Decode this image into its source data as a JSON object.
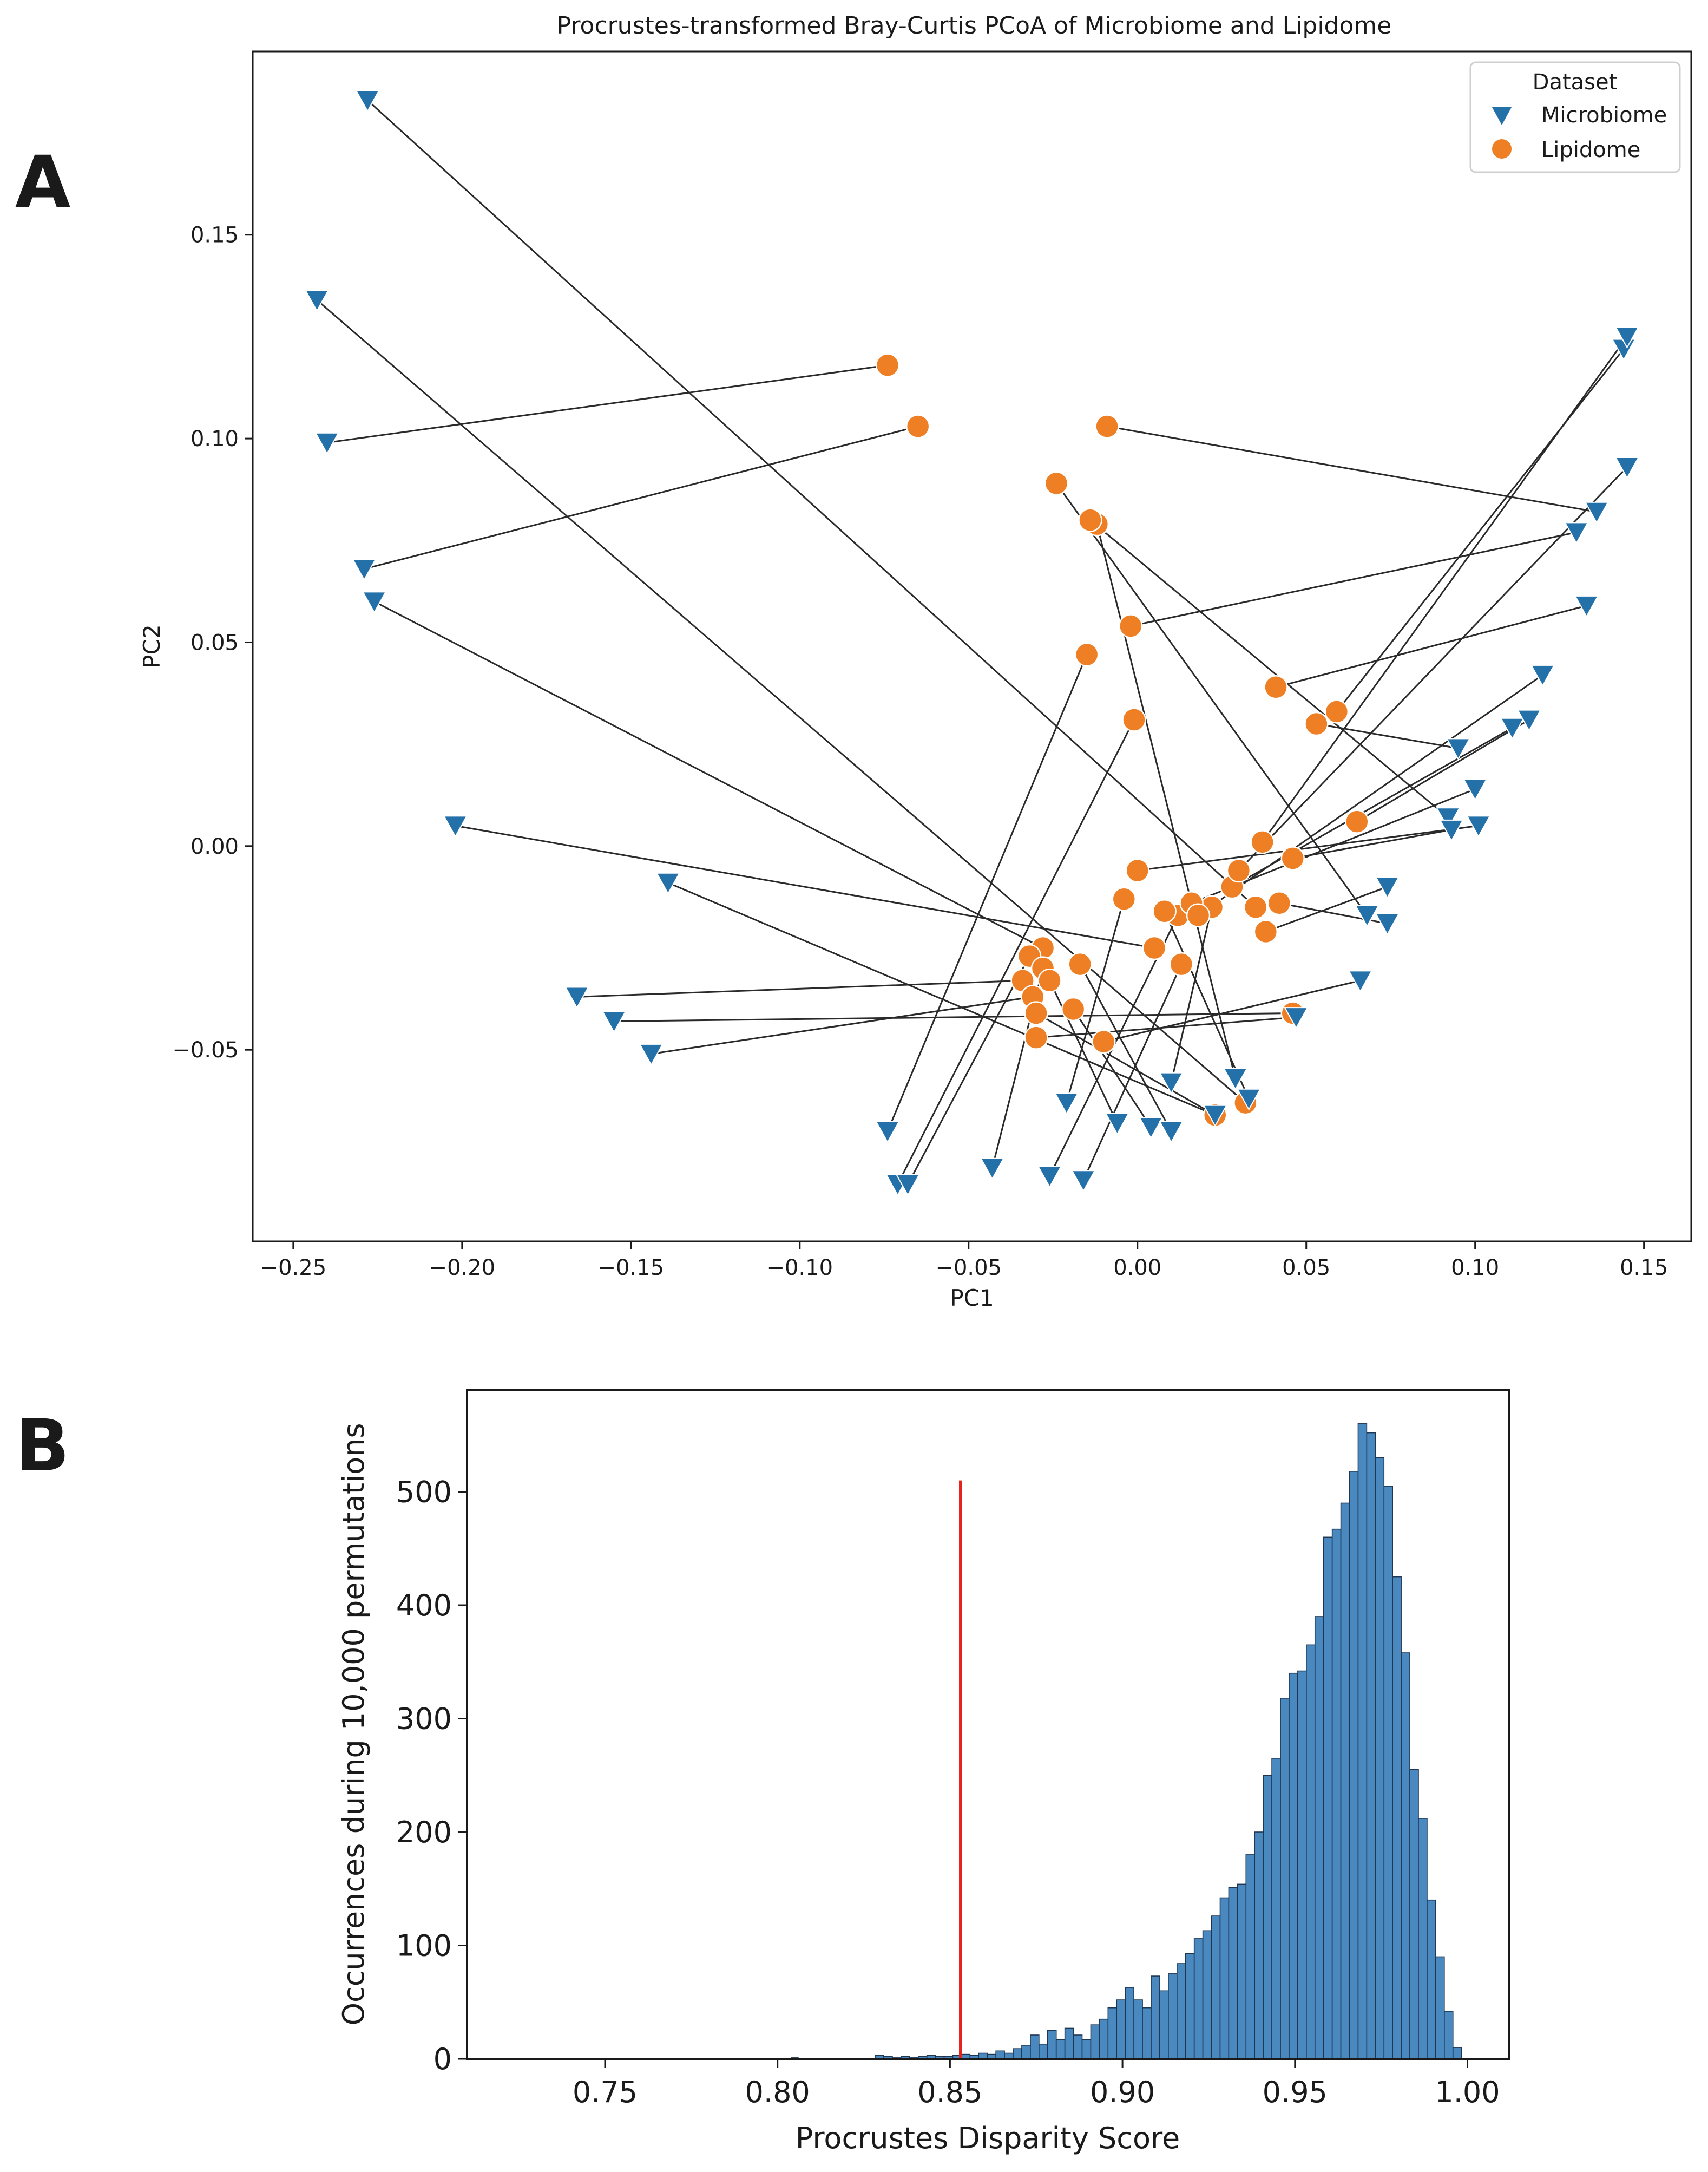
{
  "panels": {
    "a_label": "A",
    "b_label": "B"
  },
  "colors": {
    "microbiome": "#2471aa",
    "lipidome": "#ef7f24",
    "histogram": "#4a89c0",
    "threshold": "#e8221c",
    "axis": "#1a1a1a",
    "line": "#2a2a2a"
  },
  "chart_data": [
    {
      "type": "scatter",
      "title": "Procrustes-transformed Bray-Curtis PCoA of Microbiome and Lipidome",
      "xlabel": "PC1",
      "ylabel": "PC2",
      "xlim": [
        -0.262,
        0.164
      ],
      "ylim": [
        -0.097,
        0.195
      ],
      "xticks": [
        -0.25,
        -0.2,
        -0.15,
        -0.1,
        -0.05,
        0.0,
        0.05,
        0.1,
        0.15
      ],
      "xtick_labels": [
        "−0.25",
        "−0.20",
        "−0.15",
        "−0.10",
        "−0.05",
        "0.00",
        "0.05",
        "0.10",
        "0.15"
      ],
      "yticks": [
        -0.05,
        0.0,
        0.05,
        0.1,
        0.15
      ],
      "ytick_labels": [
        "−0.05",
        "0.00",
        "0.05",
        "0.10",
        "0.15"
      ],
      "legend": {
        "title": "Dataset",
        "position": "top-right",
        "entries": [
          "Microbiome",
          "Lipidome"
        ]
      },
      "series": [
        {
          "name": "Microbiome",
          "marker": "triangle-down"
        },
        {
          "name": "Lipidome",
          "marker": "circle"
        }
      ],
      "pairs": [
        {
          "microbiome": [
            -0.228,
            0.183
          ],
          "lipidome": [
            0.035,
            -0.015
          ]
        },
        {
          "microbiome": [
            -0.243,
            0.134
          ],
          "lipidome": [
            0.032,
            -0.063
          ]
        },
        {
          "microbiome": [
            -0.24,
            0.099
          ],
          "lipidome": [
            -0.074,
            0.118
          ]
        },
        {
          "microbiome": [
            -0.229,
            0.068
          ],
          "lipidome": [
            -0.065,
            0.103
          ]
        },
        {
          "microbiome": [
            -0.226,
            0.06
          ],
          "lipidome": [
            -0.028,
            -0.025
          ]
        },
        {
          "microbiome": [
            -0.202,
            0.005
          ],
          "lipidome": [
            0.005,
            -0.025
          ]
        },
        {
          "microbiome": [
            -0.139,
            -0.009
          ],
          "lipidome": [
            0.023,
            -0.066
          ]
        },
        {
          "microbiome": [
            -0.166,
            -0.037
          ],
          "lipidome": [
            -0.034,
            -0.033
          ]
        },
        {
          "microbiome": [
            -0.155,
            -0.043
          ],
          "lipidome": [
            0.046,
            -0.041
          ]
        },
        {
          "microbiome": [
            -0.144,
            -0.051
          ],
          "lipidome": [
            -0.031,
            -0.037
          ]
        },
        {
          "microbiome": [
            -0.074,
            -0.07
          ],
          "lipidome": [
            -0.015,
            0.047
          ]
        },
        {
          "microbiome": [
            -0.071,
            -0.083
          ],
          "lipidome": [
            -0.001,
            0.031
          ]
        },
        {
          "microbiome": [
            -0.068,
            -0.083
          ],
          "lipidome": [
            -0.032,
            -0.027
          ]
        },
        {
          "microbiome": [
            -0.043,
            -0.079
          ],
          "lipidome": [
            -0.028,
            -0.03
          ]
        },
        {
          "microbiome": [
            -0.026,
            -0.081
          ],
          "lipidome": [
            0.012,
            -0.017
          ]
        },
        {
          "microbiome": [
            -0.016,
            -0.082
          ],
          "lipidome": [
            0.013,
            -0.029
          ]
        },
        {
          "microbiome": [
            -0.021,
            -0.063
          ],
          "lipidome": [
            -0.004,
            -0.013
          ]
        },
        {
          "microbiome": [
            -0.006,
            -0.068
          ],
          "lipidome": [
            -0.026,
            -0.033
          ]
        },
        {
          "microbiome": [
            0.004,
            -0.069
          ],
          "lipidome": [
            -0.019,
            -0.04
          ]
        },
        {
          "microbiome": [
            0.01,
            -0.07
          ],
          "lipidome": [
            -0.017,
            -0.029
          ]
        },
        {
          "microbiome": [
            0.01,
            -0.058
          ],
          "lipidome": [
            0.022,
            -0.015
          ]
        },
        {
          "microbiome": [
            0.023,
            -0.066
          ],
          "lipidome": [
            -0.03,
            -0.041
          ]
        },
        {
          "microbiome": [
            0.029,
            -0.057
          ],
          "lipidome": [
            -0.012,
            0.079
          ]
        },
        {
          "microbiome": [
            0.033,
            -0.062
          ],
          "lipidome": [
            0.008,
            -0.016
          ]
        },
        {
          "microbiome": [
            0.047,
            -0.042
          ],
          "lipidome": [
            -0.03,
            -0.047
          ]
        },
        {
          "microbiome": [
            0.066,
            -0.033
          ],
          "lipidome": [
            -0.01,
            -0.048
          ]
        },
        {
          "microbiome": [
            0.068,
            -0.017
          ],
          "lipidome": [
            -0.024,
            0.089
          ]
        },
        {
          "microbiome": [
            0.074,
            -0.01
          ],
          "lipidome": [
            0.038,
            -0.021
          ]
        },
        {
          "microbiome": [
            0.074,
            -0.019
          ],
          "lipidome": [
            0.042,
            -0.014
          ]
        },
        {
          "microbiome": [
            0.092,
            0.007
          ],
          "lipidome": [
            -0.014,
            0.08
          ]
        },
        {
          "microbiome": [
            0.093,
            0.004
          ],
          "lipidome": [
            0.046,
            -0.003
          ]
        },
        {
          "microbiome": [
            0.095,
            0.024
          ],
          "lipidome": [
            0.053,
            0.03
          ]
        },
        {
          "microbiome": [
            0.1,
            0.014
          ],
          "lipidome": [
            0.016,
            -0.014
          ]
        },
        {
          "microbiome": [
            0.101,
            0.005
          ],
          "lipidome": [
            0.0,
            -0.006
          ]
        },
        {
          "microbiome": [
            0.111,
            0.029
          ],
          "lipidome": [
            0.028,
            -0.01
          ]
        },
        {
          "microbiome": [
            0.116,
            0.031
          ],
          "lipidome": [
            0.065,
            0.006
          ]
        },
        {
          "microbiome": [
            0.12,
            0.042
          ],
          "lipidome": [
            0.018,
            -0.017
          ]
        },
        {
          "microbiome": [
            0.133,
            0.059
          ],
          "lipidome": [
            0.041,
            0.039
          ]
        },
        {
          "microbiome": [
            0.13,
            0.077
          ],
          "lipidome": [
            -0.002,
            0.054
          ]
        },
        {
          "microbiome": [
            0.136,
            0.082
          ],
          "lipidome": [
            -0.009,
            0.103
          ]
        },
        {
          "microbiome": [
            0.144,
            0.122
          ],
          "lipidome": [
            0.059,
            0.033
          ]
        },
        {
          "microbiome": [
            0.145,
            0.125
          ],
          "lipidome": [
            0.037,
            0.001
          ]
        },
        {
          "microbiome": [
            0.145,
            0.093
          ],
          "lipidome": [
            0.03,
            -0.006
          ]
        }
      ]
    },
    {
      "type": "bar",
      "subtype": "histogram",
      "xlabel": "Procrustes Disparity Score",
      "ylabel": "Occurrences during 10,000 permutations",
      "xlim": [
        0.71,
        1.012
      ],
      "ylim": [
        0,
        590
      ],
      "xticks": [
        0.75,
        0.8,
        0.85,
        0.9,
        0.95,
        1.0
      ],
      "xtick_labels": [
        "0.75",
        "0.80",
        "0.85",
        "0.90",
        "0.95",
        "1.00"
      ],
      "yticks": [
        0,
        100,
        200,
        300,
        400,
        500
      ],
      "ytick_labels": [
        "0",
        "100",
        "200",
        "300",
        "400",
        "500"
      ],
      "threshold": {
        "x": 0.853,
        "y_top": 510
      },
      "bins": [
        {
          "x0": 0.804,
          "x1": 0.806,
          "count": 1
        },
        {
          "x0": 0.8283,
          "x1": 0.8308,
          "count": 3
        },
        {
          "x0": 0.8308,
          "x1": 0.8333,
          "count": 2
        },
        {
          "x0": 0.8333,
          "x1": 0.8358,
          "count": 1
        },
        {
          "x0": 0.8358,
          "x1": 0.8383,
          "count": 2
        },
        {
          "x0": 0.8383,
          "x1": 0.8408,
          "count": 1
        },
        {
          "x0": 0.8408,
          "x1": 0.8433,
          "count": 2
        },
        {
          "x0": 0.8433,
          "x1": 0.8458,
          "count": 3
        },
        {
          "x0": 0.8458,
          "x1": 0.8483,
          "count": 2
        },
        {
          "x0": 0.8483,
          "x1": 0.8508,
          "count": 2
        },
        {
          "x0": 0.8508,
          "x1": 0.8533,
          "count": 3
        },
        {
          "x0": 0.8533,
          "x1": 0.8558,
          "count": 4
        },
        {
          "x0": 0.8558,
          "x1": 0.8583,
          "count": 3
        },
        {
          "x0": 0.8583,
          "x1": 0.8608,
          "count": 5
        },
        {
          "x0": 0.8608,
          "x1": 0.8633,
          "count": 4
        },
        {
          "x0": 0.8633,
          "x1": 0.8658,
          "count": 7
        },
        {
          "x0": 0.8658,
          "x1": 0.8683,
          "count": 5
        },
        {
          "x0": 0.8683,
          "x1": 0.8708,
          "count": 9
        },
        {
          "x0": 0.8708,
          "x1": 0.8733,
          "count": 12
        },
        {
          "x0": 0.8733,
          "x1": 0.8758,
          "count": 21
        },
        {
          "x0": 0.8758,
          "x1": 0.8783,
          "count": 13
        },
        {
          "x0": 0.8783,
          "x1": 0.8808,
          "count": 25
        },
        {
          "x0": 0.8808,
          "x1": 0.8833,
          "count": 17
        },
        {
          "x0": 0.8833,
          "x1": 0.8858,
          "count": 27
        },
        {
          "x0": 0.8858,
          "x1": 0.8883,
          "count": 21
        },
        {
          "x0": 0.8883,
          "x1": 0.8908,
          "count": 17
        },
        {
          "x0": 0.8908,
          "x1": 0.8933,
          "count": 30
        },
        {
          "x0": 0.8933,
          "x1": 0.8958,
          "count": 35
        },
        {
          "x0": 0.8958,
          "x1": 0.8983,
          "count": 45
        },
        {
          "x0": 0.8983,
          "x1": 0.9008,
          "count": 52
        },
        {
          "x0": 0.9008,
          "x1": 0.9033,
          "count": 63
        },
        {
          "x0": 0.9033,
          "x1": 0.9058,
          "count": 52
        },
        {
          "x0": 0.9058,
          "x1": 0.9083,
          "count": 45
        },
        {
          "x0": 0.9083,
          "x1": 0.9108,
          "count": 73
        },
        {
          "x0": 0.9108,
          "x1": 0.9133,
          "count": 60
        },
        {
          "x0": 0.9133,
          "x1": 0.9158,
          "count": 75
        },
        {
          "x0": 0.9158,
          "x1": 0.9183,
          "count": 84
        },
        {
          "x0": 0.9183,
          "x1": 0.9208,
          "count": 93
        },
        {
          "x0": 0.9208,
          "x1": 0.9233,
          "count": 106
        },
        {
          "x0": 0.9233,
          "x1": 0.9258,
          "count": 113
        },
        {
          "x0": 0.9258,
          "x1": 0.9283,
          "count": 126
        },
        {
          "x0": 0.9283,
          "x1": 0.9308,
          "count": 142
        },
        {
          "x0": 0.9308,
          "x1": 0.9333,
          "count": 151
        },
        {
          "x0": 0.9333,
          "x1": 0.9358,
          "count": 154
        },
        {
          "x0": 0.9358,
          "x1": 0.9383,
          "count": 180
        },
        {
          "x0": 0.9383,
          "x1": 0.9408,
          "count": 200
        },
        {
          "x0": 0.9408,
          "x1": 0.9433,
          "count": 250
        },
        {
          "x0": 0.9433,
          "x1": 0.9458,
          "count": 265
        },
        {
          "x0": 0.9458,
          "x1": 0.9483,
          "count": 318
        },
        {
          "x0": 0.9483,
          "x1": 0.9508,
          "count": 340
        },
        {
          "x0": 0.9508,
          "x1": 0.9533,
          "count": 342
        },
        {
          "x0": 0.9533,
          "x1": 0.9558,
          "count": 365
        },
        {
          "x0": 0.9558,
          "x1": 0.9583,
          "count": 390
        },
        {
          "x0": 0.9583,
          "x1": 0.9608,
          "count": 460
        },
        {
          "x0": 0.9608,
          "x1": 0.9633,
          "count": 467
        },
        {
          "x0": 0.9633,
          "x1": 0.9658,
          "count": 490
        },
        {
          "x0": 0.9658,
          "x1": 0.9683,
          "count": 518
        },
        {
          "x0": 0.9683,
          "x1": 0.9708,
          "count": 560
        },
        {
          "x0": 0.9708,
          "x1": 0.9733,
          "count": 552
        },
        {
          "x0": 0.9733,
          "x1": 0.9758,
          "count": 530
        },
        {
          "x0": 0.9758,
          "x1": 0.9783,
          "count": 505
        },
        {
          "x0": 0.9783,
          "x1": 0.9808,
          "count": 425
        },
        {
          "x0": 0.9808,
          "x1": 0.9833,
          "count": 358
        },
        {
          "x0": 0.9833,
          "x1": 0.9858,
          "count": 255
        },
        {
          "x0": 0.9858,
          "x1": 0.9883,
          "count": 212
        },
        {
          "x0": 0.9883,
          "x1": 0.9908,
          "count": 140
        },
        {
          "x0": 0.9908,
          "x1": 0.9933,
          "count": 90
        },
        {
          "x0": 0.9933,
          "x1": 0.9958,
          "count": 42
        },
        {
          "x0": 0.9958,
          "x1": 0.9983,
          "count": 10
        }
      ]
    }
  ]
}
